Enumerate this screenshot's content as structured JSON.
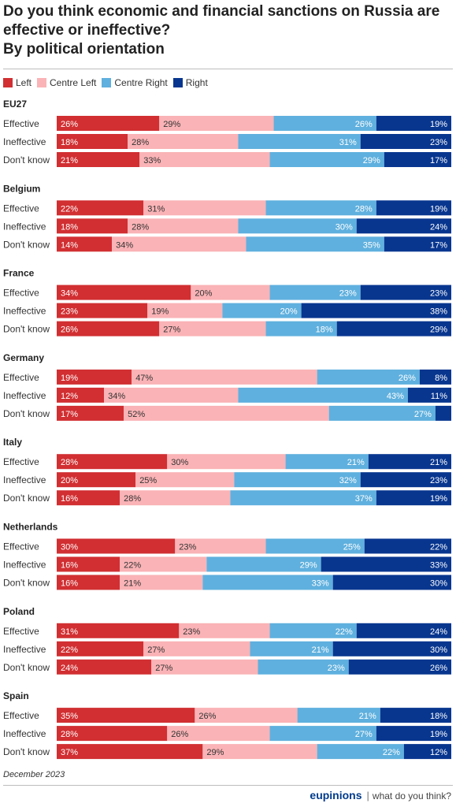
{
  "title_lines": [
    "Do you think economic and financial sanctions on Russia are",
    "effective or ineffective?",
    "By political orientation"
  ],
  "colors": {
    "Left": "#d12f32",
    "Centre Left": "#fab3b6",
    "Centre Right": "#5fb0de",
    "Right": "#08368f"
  },
  "chart_data": {
    "type": "bar",
    "orientation": "horizontal",
    "stacked": true,
    "unit": "%",
    "legend_position": "top-left",
    "series_names": [
      "Left",
      "Centre Left",
      "Centre Right",
      "Right"
    ],
    "groups": [
      {
        "name": "EU27",
        "rows": [
          {
            "label": "Effective",
            "values": [
              26,
              29,
              26,
              19
            ]
          },
          {
            "label": "Ineffective",
            "values": [
              18,
              28,
              31,
              23
            ]
          },
          {
            "label": "Don't know",
            "values": [
              21,
              33,
              29,
              17
            ]
          }
        ]
      },
      {
        "name": "Belgium",
        "rows": [
          {
            "label": "Effective",
            "values": [
              22,
              31,
              28,
              19
            ]
          },
          {
            "label": "Ineffective",
            "values": [
              18,
              28,
              30,
              24
            ]
          },
          {
            "label": "Don't know",
            "values": [
              14,
              34,
              35,
              17
            ]
          }
        ]
      },
      {
        "name": "France",
        "rows": [
          {
            "label": "Effective",
            "values": [
              34,
              20,
              23,
              23
            ]
          },
          {
            "label": "Ineffective",
            "values": [
              23,
              19,
              20,
              38
            ]
          },
          {
            "label": "Don't know",
            "values": [
              26,
              27,
              18,
              29
            ]
          }
        ]
      },
      {
        "name": "Germany",
        "rows": [
          {
            "label": "Effective",
            "values": [
              19,
              47,
              26,
              8
            ]
          },
          {
            "label": "Ineffective",
            "values": [
              12,
              34,
              43,
              11
            ]
          },
          {
            "label": "Don't know",
            "values": [
              17,
              52,
              27,
              4
            ]
          }
        ]
      },
      {
        "name": "Italy",
        "rows": [
          {
            "label": "Effective",
            "values": [
              28,
              30,
              21,
              21
            ]
          },
          {
            "label": "Ineffective",
            "values": [
              20,
              25,
              32,
              23
            ]
          },
          {
            "label": "Don't know",
            "values": [
              16,
              28,
              37,
              19
            ]
          }
        ]
      },
      {
        "name": "Netherlands",
        "rows": [
          {
            "label": "Effective",
            "values": [
              30,
              23,
              25,
              22
            ]
          },
          {
            "label": "Ineffective",
            "values": [
              16,
              22,
              29,
              33
            ]
          },
          {
            "label": "Don't know",
            "values": [
              16,
              21,
              33,
              30
            ]
          }
        ]
      },
      {
        "name": "Poland",
        "rows": [
          {
            "label": "Effective",
            "values": [
              31,
              23,
              22,
              24
            ]
          },
          {
            "label": "Ineffective",
            "values": [
              22,
              27,
              21,
              30
            ]
          },
          {
            "label": "Don't know",
            "values": [
              24,
              27,
              23,
              26
            ]
          }
        ]
      },
      {
        "name": "Spain",
        "rows": [
          {
            "label": "Effective",
            "values": [
              35,
              26,
              21,
              18
            ]
          },
          {
            "label": "Ineffective",
            "values": [
              28,
              26,
              27,
              19
            ]
          },
          {
            "label": "Don't know",
            "values": [
              37,
              29,
              22,
              12
            ]
          }
        ]
      }
    ]
  },
  "footer": {
    "date": "December 2023",
    "brand": "eupinions",
    "separator": "|",
    "tagline": "what do you think?"
  }
}
